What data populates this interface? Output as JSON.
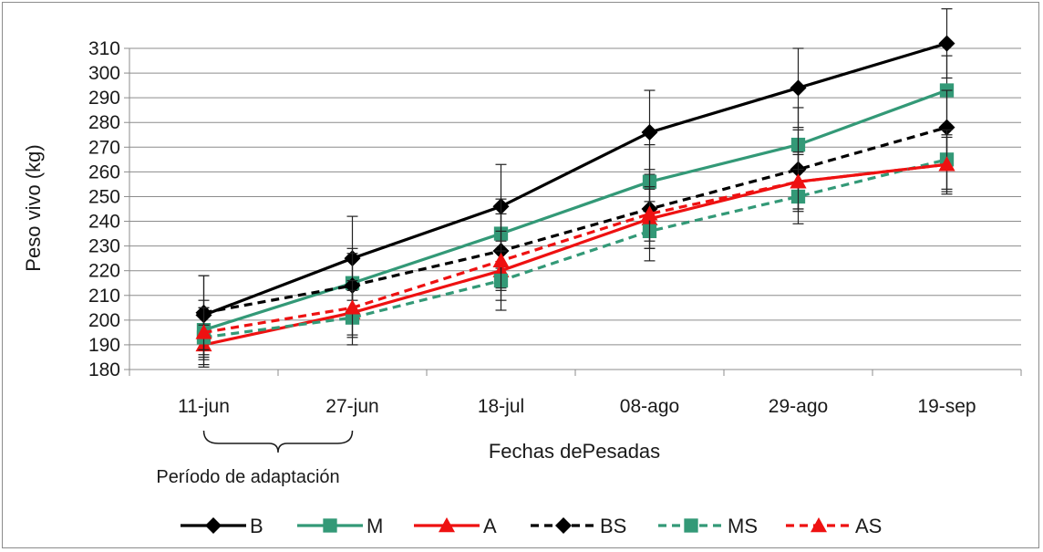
{
  "chart_data": {
    "type": "line",
    "title": "",
    "xlabel": "Fechas dePesadas",
    "ylabel": "Peso vivo (kg)",
    "categories": [
      "11-jun",
      "27-jun",
      "18-jul",
      "08-ago",
      "29-ago",
      "19-sep"
    ],
    "ylim": [
      180,
      310
    ],
    "yticks": [
      180,
      190,
      200,
      210,
      220,
      230,
      240,
      250,
      260,
      270,
      280,
      290,
      300,
      310
    ],
    "grid": "horizontal",
    "legend_position": "bottom",
    "annotation": "Período de adaptación",
    "annotation_span": [
      "11-jun",
      "27-jun"
    ],
    "series": [
      {
        "name": "B",
        "color": "#000000",
        "dash": "solid",
        "marker": "diamond",
        "values": [
          202,
          225,
          246,
          276,
          294,
          312
        ],
        "errors": [
          16,
          17,
          17,
          17,
          16,
          14
        ]
      },
      {
        "name": "M",
        "color": "#339977",
        "dash": "solid",
        "marker": "square",
        "values": [
          196,
          215,
          235,
          256,
          271,
          293
        ],
        "errors": [
          12,
          12,
          14,
          15,
          15,
          14
        ]
      },
      {
        "name": "A",
        "color": "#ee1111",
        "dash": "solid",
        "marker": "triangle",
        "values": [
          190,
          203,
          220,
          241,
          256,
          263
        ],
        "errors": [
          8,
          10,
          12,
          12,
          12,
          11
        ]
      },
      {
        "name": "BS",
        "color": "#000000",
        "dash": "dashed",
        "marker": "diamond",
        "values": [
          203,
          214,
          228,
          245,
          261,
          278
        ],
        "errors": [
          15,
          15,
          15,
          16,
          16,
          15
        ]
      },
      {
        "name": "MS",
        "color": "#339977",
        "dash": "dashed",
        "marker": "square",
        "values": [
          193,
          201,
          216,
          236,
          250,
          265
        ],
        "errors": [
          12,
          11,
          12,
          12,
          11,
          12
        ]
      },
      {
        "name": "AS",
        "color": "#ee1111",
        "dash": "dashed",
        "marker": "triangle",
        "values": [
          195,
          205,
          224,
          243,
          256,
          263
        ],
        "errors": [
          10,
          11,
          12,
          11,
          11,
          12
        ]
      }
    ]
  }
}
